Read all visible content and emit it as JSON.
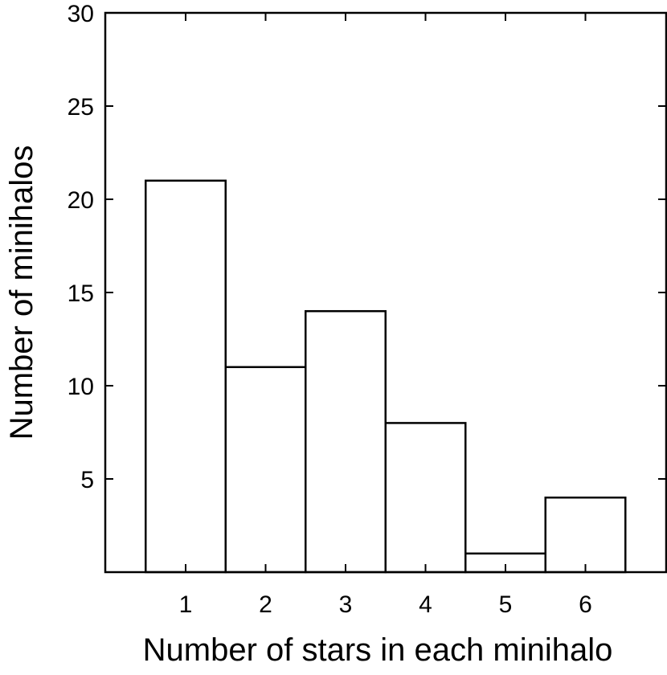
{
  "chart_data": {
    "type": "bar",
    "title": "",
    "xlabel": "Number of stars in each minihalo",
    "ylabel": "Number of minihalos",
    "categories": [
      "1",
      "2",
      "3",
      "4",
      "5",
      "6"
    ],
    "values": [
      21,
      11,
      14,
      8,
      1,
      4
    ],
    "ylim": [
      0,
      30
    ],
    "yticks": [
      "5",
      "10",
      "15",
      "20",
      "25",
      "30"
    ],
    "grid": false,
    "bar_fill": "#ffffff",
    "bar_stroke": "#000000"
  }
}
